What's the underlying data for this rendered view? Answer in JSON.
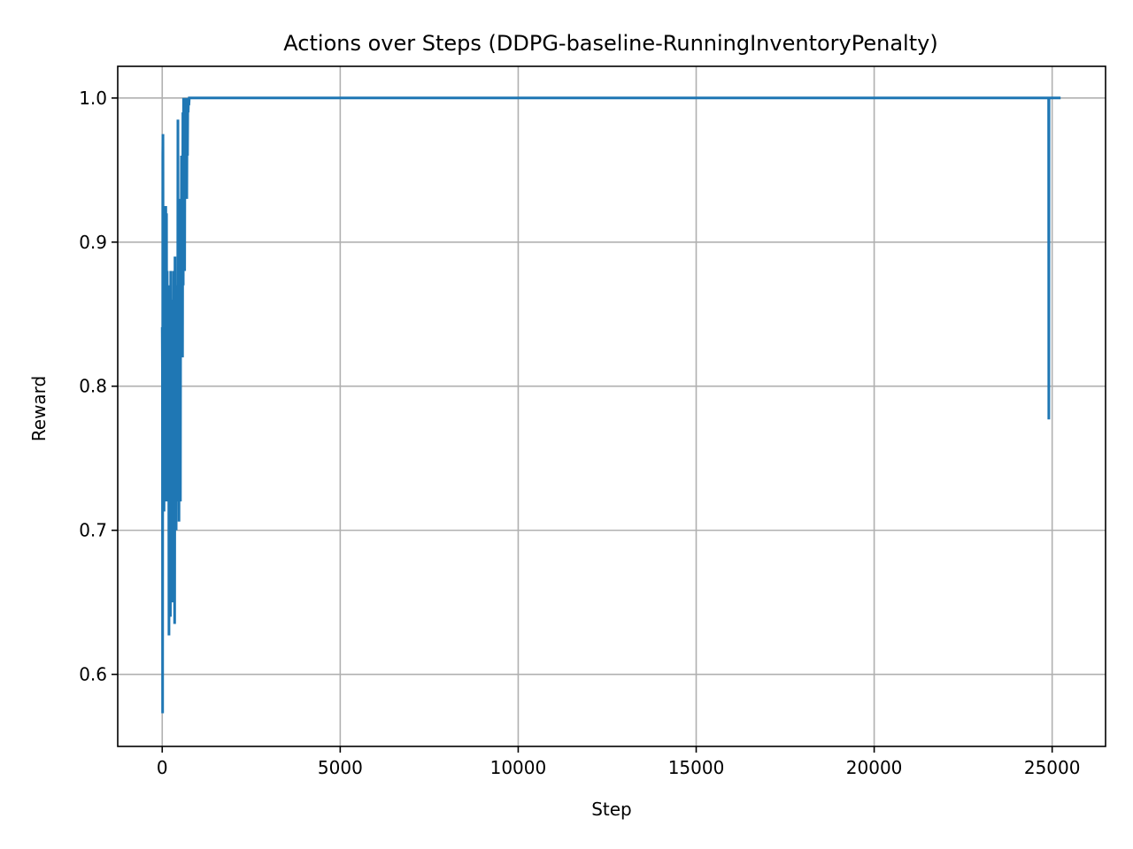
{
  "chart_data": {
    "type": "line",
    "title": "Actions over Steps (DDPG-baseline-RunningInventoryPenalty)",
    "xlabel": "Step",
    "ylabel": "Reward",
    "xlim": [
      -1250,
      26500
    ],
    "ylim": [
      0.55,
      1.022
    ],
    "xticks": [
      0,
      5000,
      10000,
      15000,
      20000,
      25000
    ],
    "xtick_labels": [
      "0",
      "5000",
      "10000",
      "15000",
      "20000",
      "25000"
    ],
    "yticks": [
      0.6,
      0.7,
      0.8,
      0.9,
      1.0
    ],
    "ytick_labels": [
      "0.6",
      "0.7",
      "0.8",
      "0.9",
      "1.0"
    ],
    "grid": true,
    "series_color": "#1f77b4",
    "series": [
      {
        "x": [
          0,
          5,
          10,
          15,
          20,
          25,
          30,
          40,
          50,
          60,
          70,
          80,
          90,
          100,
          110,
          120,
          130,
          140,
          150,
          160,
          170,
          180,
          190,
          200,
          210,
          220,
          230,
          240,
          250,
          260,
          270,
          280,
          290,
          300,
          310,
          320,
          330,
          340,
          350,
          360,
          370,
          380,
          390,
          400,
          410,
          420,
          430,
          440,
          450,
          460,
          470,
          480,
          490,
          500,
          510,
          520,
          530,
          540,
          550,
          560,
          570,
          580,
          590,
          600,
          610,
          620,
          630,
          640,
          650,
          660,
          670,
          680,
          690,
          700,
          710,
          720,
          730,
          740,
          750,
          760,
          770,
          780,
          790,
          800,
          810,
          820,
          830,
          840,
          850,
          860,
          870,
          880,
          890,
          900,
          1000,
          5000,
          10000,
          15000,
          20000,
          24900,
          24905,
          24910,
          25000,
          25200
        ],
        "y": [
          0.84,
          0.81,
          0.573,
          0.96,
          0.975,
          0.86,
          0.8,
          0.92,
          0.713,
          0.925,
          0.74,
          0.9,
          0.72,
          0.925,
          0.76,
          0.92,
          0.72,
          0.88,
          0.75,
          0.86,
          0.73,
          0.84,
          0.627,
          0.87,
          0.72,
          0.86,
          0.64,
          0.88,
          0.66,
          0.83,
          0.7,
          0.86,
          0.65,
          0.82,
          0.72,
          0.88,
          0.66,
          0.85,
          0.635,
          0.89,
          0.72,
          0.87,
          0.7,
          0.84,
          0.76,
          0.86,
          0.72,
          0.985,
          0.8,
          0.93,
          0.706,
          0.93,
          0.78,
          0.88,
          0.72,
          0.93,
          0.82,
          0.96,
          0.86,
          0.94,
          0.82,
          0.99,
          0.87,
          1.0,
          0.9,
          0.99,
          0.88,
          1.0,
          0.93,
          1.0,
          0.95,
          0.99,
          0.93,
          1.0,
          0.96,
          1.0,
          0.99,
          1.0,
          0.995,
          1.0,
          1.0,
          1.0,
          1.0,
          1.0,
          1.0,
          1.0,
          1.0,
          1.0,
          1.0,
          1.0,
          1.0,
          1.0,
          1.0,
          1.0,
          1.0,
          1.0,
          1.0,
          1.0,
          1.0,
          1.0,
          0.777,
          1.0,
          1.0,
          1.0
        ]
      }
    ]
  }
}
